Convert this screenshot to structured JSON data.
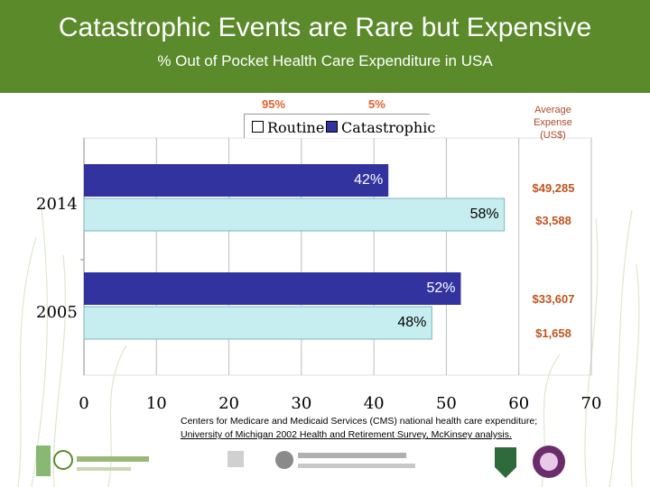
{
  "header": {
    "title": "Catastrophic Events are Rare but Expensive",
    "subtitle": "% Out of Pocket Health Care Expenditure in USA"
  },
  "share_labels": {
    "routine": "95%",
    "catastrophic": "5%"
  },
  "legend": {
    "routine": "Routine",
    "catastrophic": "Catastrophic"
  },
  "average_expense": {
    "header_line1": "Average",
    "header_line2": "Expense",
    "header_line3": "(US$)",
    "values": [
      "$49,285",
      "$3,588",
      "$33,607",
      "$1,658"
    ]
  },
  "footnote": {
    "line1": "Centers for Medicare and Medicaid Services (CMS) national health care expenditure;",
    "line2": "University of Michigan 2002 Health and Retirement Survey, McKinsey analysis."
  },
  "colors": {
    "header_bg": "#5a8a2a",
    "catastrophic": "#3333a0",
    "routine": "#c6eef0",
    "accent": "#e8602c"
  },
  "chart_data": {
    "type": "bar",
    "orientation": "horizontal",
    "categories": [
      "2014",
      "2005"
    ],
    "series": [
      {
        "name": "Catastrophic",
        "values": [
          42,
          52
        ]
      },
      {
        "name": "Routine",
        "values": [
          58,
          48
        ]
      }
    ],
    "data_labels": {
      "Catastrophic": [
        "42%",
        "52%"
      ],
      "Routine": [
        "58%",
        "48%"
      ]
    },
    "xlim": [
      0,
      70
    ],
    "xticks": [
      0,
      10,
      20,
      30,
      40,
      50,
      60,
      70
    ],
    "grid": true,
    "legend_position": "top"
  }
}
